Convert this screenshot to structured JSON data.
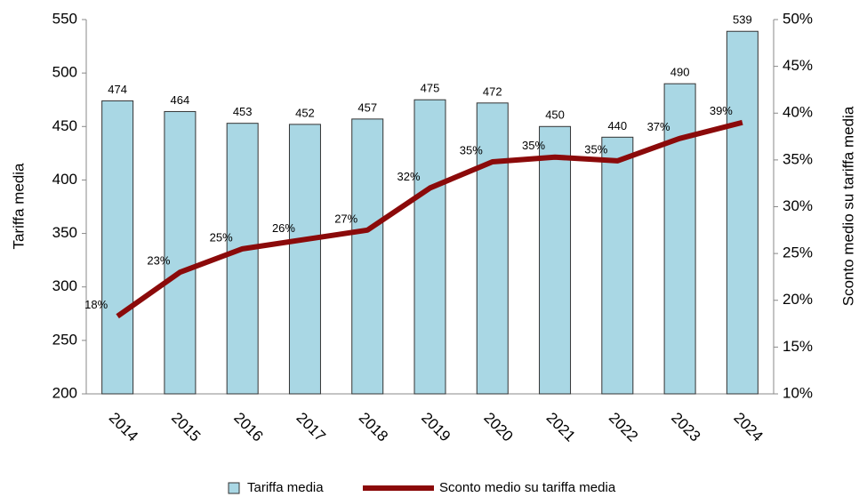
{
  "chart_data": {
    "type": "bar+line",
    "categories": [
      "2014",
      "2015",
      "2016",
      "2017",
      "2018",
      "2019",
      "2020",
      "2021",
      "2022",
      "2023",
      "2024"
    ],
    "series": [
      {
        "name": "Tariffa media",
        "type": "bar",
        "color": "#a9d7e4",
        "values": [
          474,
          464,
          453,
          452,
          457,
          475,
          472,
          450,
          440,
          490,
          539
        ]
      },
      {
        "name": "Sconto medio su tariffa media",
        "type": "line",
        "axis": "y2",
        "color": "#8b0a0a",
        "values": [
          18.3,
          23.0,
          25.5,
          26.5,
          27.5,
          32.0,
          34.8,
          35.3,
          34.9,
          37.3,
          39.0
        ],
        "value_labels": [
          "18%",
          "23%",
          "25%",
          "26%",
          "27%",
          "32%",
          "35%",
          "35%",
          "35%",
          "37%",
          "39%"
        ]
      }
    ],
    "ylabel": "Tariffa media",
    "y2label": "Sconto medio su tariffa media",
    "ylim": [
      200,
      550
    ],
    "yticks": [
      200,
      250,
      300,
      350,
      400,
      450,
      500,
      550
    ],
    "y2lim": [
      10,
      50
    ],
    "y2ticks": [
      {
        "value": 10,
        "label": "10%"
      },
      {
        "value": 15,
        "label": "15%"
      },
      {
        "value": 20,
        "label": "20%"
      },
      {
        "value": 25,
        "label": "25%"
      },
      {
        "value": 30,
        "label": "30%"
      },
      {
        "value": 35,
        "label": "35%"
      },
      {
        "value": 40,
        "label": "40%"
      },
      {
        "value": 45,
        "label": "45%"
      },
      {
        "value": 50,
        "label": "50%"
      }
    ],
    "legend": "bottom",
    "grid": false
  }
}
